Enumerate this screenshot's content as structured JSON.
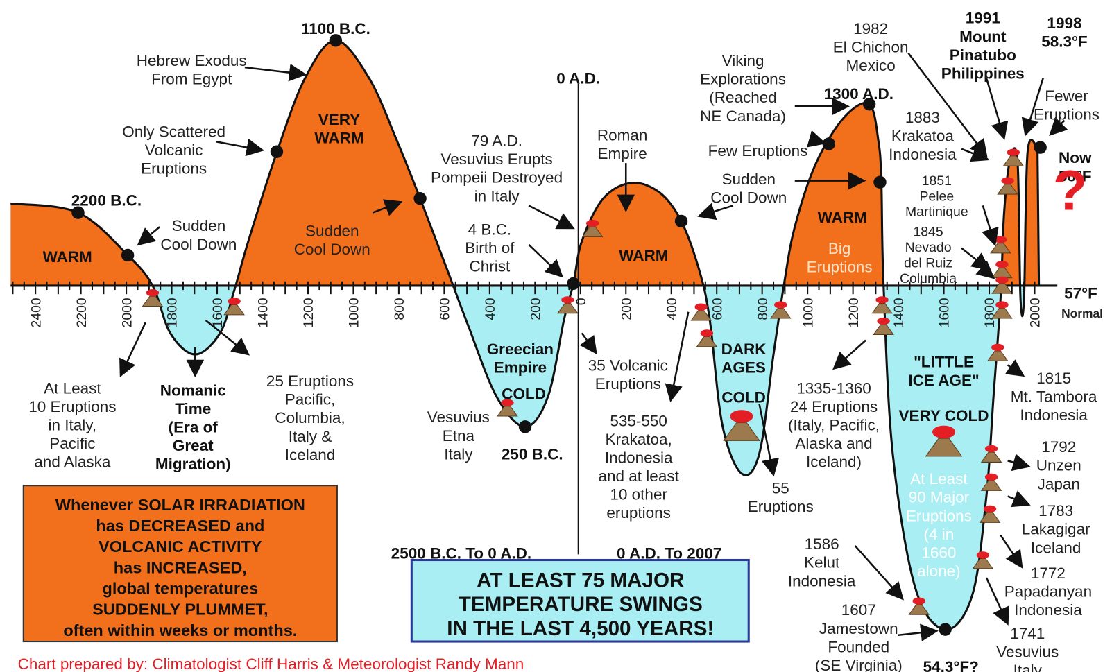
{
  "annotations": [
    {
      "lines": [
        "1100 B.C."
      ]
    },
    {
      "lines": [
        "Hebrew Exodus",
        "From Egypt"
      ]
    },
    {
      "lines": [
        "VERY",
        "WARM"
      ]
    },
    {
      "lines": [
        "Only Scattered",
        "Volcanic",
        "Eruptions"
      ]
    },
    {
      "lines": [
        "2200 B.C."
      ]
    },
    {
      "lines": [
        "Sudden",
        "Cool Down"
      ]
    },
    {
      "lines": [
        "WARM"
      ]
    },
    {
      "lines": [
        "Sudden",
        "Cool Down"
      ]
    },
    {
      "lines": [
        "0 A.D."
      ]
    },
    {
      "lines": [
        "79 A.D.",
        "Vesuvius Erupts",
        "Pompeii Destroyed",
        "in Italy"
      ]
    },
    {
      "lines": [
        "4 B.C.",
        "Birth of",
        "Christ"
      ]
    },
    {
      "lines": [
        "Roman",
        "Empire"
      ]
    },
    {
      "lines": [
        "WARM"
      ]
    },
    {
      "lines": [
        "Viking",
        "Explorations",
        "(Reached",
        "NE Canada)"
      ]
    },
    {
      "lines": [
        "1982",
        "El Chichon",
        "Mexico"
      ]
    },
    {
      "lines": [
        "1991",
        "Mount",
        "Pinatubo",
        "Philippines"
      ]
    },
    {
      "lines": [
        "1998",
        "58.3°F"
      ]
    },
    {
      "lines": [
        "1300 A.D."
      ]
    },
    {
      "lines": [
        "Fewer",
        "Eruptions"
      ]
    },
    {
      "lines": [
        "Few Eruptions"
      ]
    },
    {
      "lines": [
        "1883",
        "Krakatoa",
        "Indonesia"
      ]
    },
    {
      "lines": [
        "Now",
        "58°F"
      ]
    },
    {
      "lines": [
        "Sudden",
        "Cool Down"
      ]
    },
    {
      "lines": [
        "WARM"
      ]
    },
    {
      "lines": [
        "1851",
        "Pelee",
        "Martinique"
      ]
    },
    {
      "lines": [
        "?"
      ]
    },
    {
      "lines": [
        "Big",
        "Eruptions"
      ]
    },
    {
      "lines": [
        "1845",
        "Nevado",
        "del Ruiz",
        "Columbia"
      ]
    },
    {
      "lines": [
        "57°F"
      ]
    },
    {
      "lines": [
        "Normal"
      ]
    },
    {
      "lines": [
        "Greecian",
        "Empire"
      ]
    },
    {
      "lines": [
        "COLD"
      ]
    },
    {
      "lines": [
        "35 Volcanic",
        "Eruptions"
      ]
    },
    {
      "lines": [
        "DARK",
        "AGES"
      ]
    },
    {
      "lines": [
        "COLD"
      ]
    },
    {
      "lines": [
        "1335-1360",
        "24 Eruptions",
        "(Italy, Pacific,",
        "Alaska and",
        "Iceland)"
      ]
    },
    {
      "lines": [
        "\"LITTLE",
        "ICE AGE\""
      ]
    },
    {
      "lines": [
        "1815",
        "Mt. Tambora",
        "Indonesia"
      ]
    },
    {
      "lines": [
        "VERY COLD"
      ]
    },
    {
      "lines": [
        "At Least",
        "10 Eruptions",
        "in Italy,",
        "Pacific",
        "and Alaska"
      ]
    },
    {
      "lines": [
        "Nomanic",
        "Time",
        "(Era of",
        "Great",
        "Migration)"
      ]
    },
    {
      "lines": [
        "25 Eruptions",
        "Pacific,",
        "Columbia,",
        "Italy &",
        "Iceland"
      ]
    },
    {
      "lines": [
        "Vesuvius",
        "Etna",
        "Italy"
      ]
    },
    {
      "lines": [
        "250 B.C."
      ]
    },
    {
      "lines": [
        "535-550",
        "Krakatoa,",
        "Indonesia",
        "and at least",
        "10 other",
        "eruptions"
      ]
    },
    {
      "lines": [
        "55",
        "Eruptions"
      ]
    },
    {
      "lines": [
        "1792",
        "Unzen",
        "Japan"
      ]
    },
    {
      "lines": [
        "At Least",
        "90 Major",
        "Eruptions",
        "(4 in",
        "1660",
        "alone)"
      ]
    },
    {
      "lines": [
        "1783",
        "Lakagigar",
        "Iceland"
      ]
    },
    {
      "lines": [
        "1586",
        "Kelut",
        "Indonesia"
      ]
    },
    {
      "lines": [
        "1772",
        "Papadanyan",
        "Indonesia"
      ]
    },
    {
      "lines": [
        "1607",
        "Jamestown",
        "Founded",
        "(SE Virginia)"
      ]
    },
    {
      "lines": [
        "54.3°F?"
      ]
    },
    {
      "lines": [
        "1741",
        "Vesuvius",
        "Italy"
      ]
    },
    {
      "lines": [
        "2500 B.C. To 0 A.D."
      ]
    },
    {
      "lines": [
        "0 A.D. To 2007"
      ]
    }
  ],
  "axis": {
    "labels": [
      "2400",
      "2200",
      "2000",
      "1800",
      "1600",
      "1400",
      "1200",
      "1000",
      "800",
      "600",
      "400",
      "200",
      "0",
      "200",
      "400",
      "600",
      "800",
      "1000",
      "1200",
      "1400",
      "1600",
      "1800",
      "2000"
    ]
  },
  "callout": {
    "lines": [
      "Whenever SOLAR IRRADIATION",
      "has DECREASED and",
      "VOLCANIC ACTIVITY",
      "has INCREASED,",
      "global temperatures",
      "SUDDENLY PLUMMET,",
      "often within weeks or months."
    ]
  },
  "banner": {
    "lines": [
      "AT LEAST 75 MAJOR",
      "TEMPERATURE SWINGS",
      "IN THE LAST 4,500 YEARS!"
    ]
  },
  "credit": "Chart prepared by: Climatologist Cliff Harris & Meteorologist Randy Mann"
}
